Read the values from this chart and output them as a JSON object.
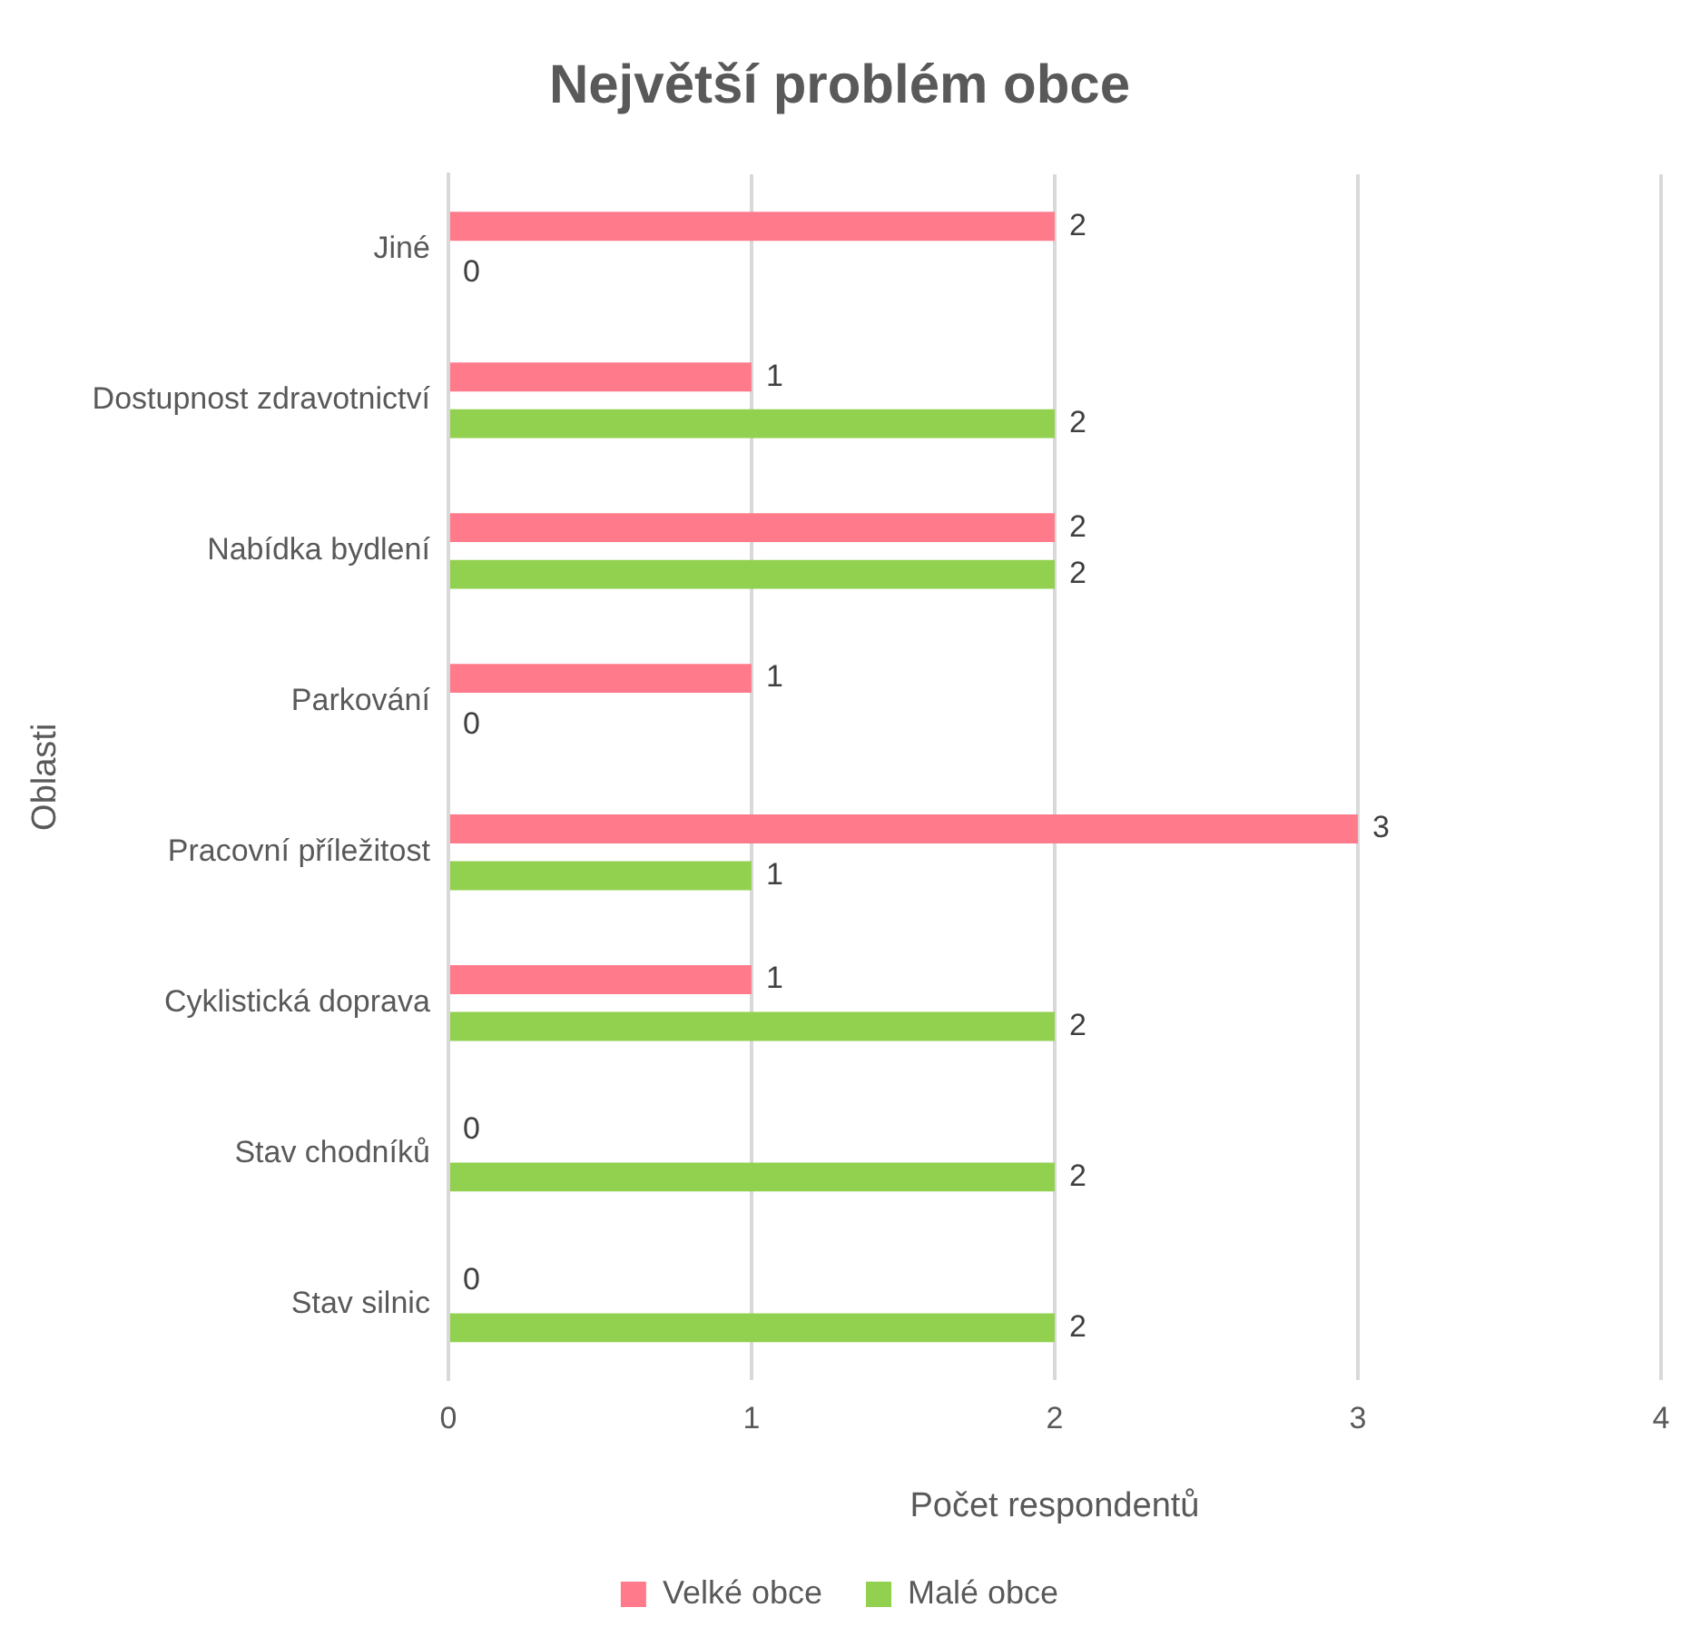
{
  "chart_data": {
    "type": "bar",
    "orientation": "horizontal",
    "title": "Největší problém obce",
    "xlabel": "Počet respondentů",
    "ylabel": "Oblasti",
    "categories": [
      "Jiné",
      "Dostupnost zdravotnictví",
      "Nabídka bydlení",
      "Parkování",
      "Pracovní příležitost",
      "Cyklistická doprava",
      "Stav chodníků",
      "Stav silnic"
    ],
    "series": [
      {
        "name": "Velké obce",
        "color": "#ff7b8c",
        "values": [
          2,
          1,
          2,
          1,
          3,
          1,
          0,
          0
        ]
      },
      {
        "name": "Malé obce",
        "color": "#92d050",
        "values": [
          0,
          2,
          2,
          0,
          1,
          2,
          2,
          2
        ]
      }
    ],
    "xlim": [
      0,
      4
    ],
    "xticks": [
      0,
      1,
      2,
      3,
      4
    ],
    "grid": "x",
    "legend": "bottom",
    "data_labels": true
  }
}
